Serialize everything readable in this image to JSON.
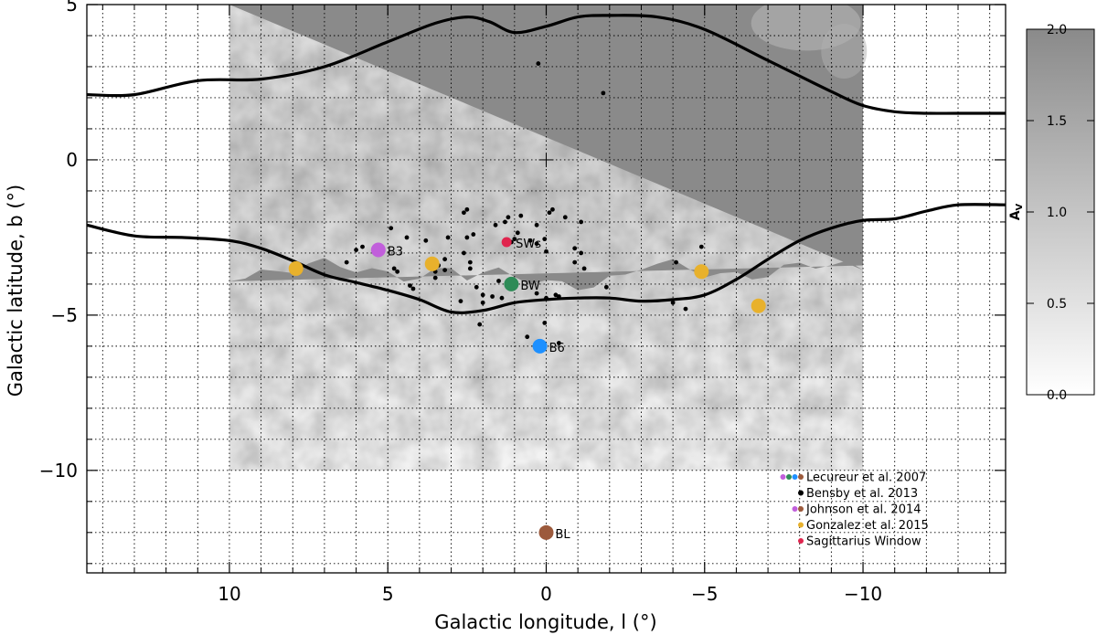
{
  "chart_data": {
    "type": "scatter",
    "title": "",
    "xlabel": "Galactic longitude, l (°)",
    "ylabel": "Galactic latitude, b (°)",
    "xlim": [
      14.5,
      -14.5
    ],
    "ylim": [
      -13.3,
      5.0
    ],
    "x_ticks": [
      10,
      5,
      0,
      -5,
      -10
    ],
    "x_tick_labels": [
      "10",
      "5",
      "0",
      "−5",
      "−10"
    ],
    "y_ticks": [
      5,
      0,
      -5,
      -10
    ],
    "y_tick_labels": [
      "5",
      "0",
      "−5",
      "−10"
    ],
    "grid": true,
    "extinction_map": {
      "l_range": [
        10,
        -10
      ],
      "b_range": [
        -10,
        5
      ],
      "dark_above_b": -4.0
    },
    "colorbar": {
      "label": "A_V",
      "ticks": [
        0.0,
        0.5,
        1.0,
        1.5,
        2.0
      ],
      "tick_labels": [
        "0.0",
        "0.5",
        "1.0",
        "1.5",
        "2.0"
      ],
      "range": [
        0.0,
        2.0
      ]
    },
    "contours": [
      {
        "name": "upper-contour",
        "l": [
          14.5,
          13,
          11,
          9,
          7,
          5,
          3.5,
          2.5,
          1.8,
          1,
          0,
          -1,
          -2,
          -3.5,
          -5,
          -7,
          -9,
          -10,
          -11,
          -12,
          -13,
          -14.5
        ],
        "b": [
          2.1,
          2.1,
          2.55,
          2.6,
          3.0,
          3.8,
          4.4,
          4.6,
          4.45,
          4.1,
          4.3,
          4.6,
          4.65,
          4.6,
          4.2,
          3.2,
          2.2,
          1.75,
          1.55,
          1.5,
          1.5,
          1.5
        ]
      },
      {
        "name": "lower-contour",
        "l": [
          14.5,
          13,
          11.5,
          10,
          9,
          8,
          7,
          6,
          5,
          4,
          3,
          2,
          1,
          0,
          -1,
          -2,
          -3,
          -4,
          -5,
          -6,
          -7,
          -8,
          -9,
          -10,
          -11,
          -12,
          -13,
          -14.5
        ],
        "b": [
          -2.1,
          -2.45,
          -2.5,
          -2.6,
          -2.85,
          -3.25,
          -3.7,
          -3.95,
          -4.2,
          -4.5,
          -4.9,
          -4.85,
          -4.6,
          -4.5,
          -4.45,
          -4.45,
          -4.55,
          -4.5,
          -4.35,
          -3.85,
          -3.2,
          -2.6,
          -2.2,
          -1.95,
          -1.9,
          -1.65,
          -1.45,
          -1.45
        ]
      }
    ],
    "series": [
      {
        "name": "Bensby et al. 2013",
        "color": "#000000",
        "marker": "small-dot",
        "points": [
          [
            0.25,
            3.1
          ],
          [
            -1.8,
            2.15
          ],
          [
            2.5,
            -1.6
          ],
          [
            2.6,
            -1.7
          ],
          [
            1.6,
            -2.1
          ],
          [
            1.3,
            -2.0
          ],
          [
            1.2,
            -1.85
          ],
          [
            0.8,
            -1.8
          ],
          [
            -0.2,
            -1.6
          ],
          [
            -0.1,
            -1.7
          ],
          [
            -0.6,
            -1.85
          ],
          [
            -1.1,
            -2.0
          ],
          [
            0.3,
            -2.1
          ],
          [
            0.9,
            -2.35
          ],
          [
            1.0,
            -2.55
          ],
          [
            2.3,
            -2.4
          ],
          [
            2.5,
            -2.5
          ],
          [
            4.9,
            -2.2
          ],
          [
            4.4,
            -2.5
          ],
          [
            3.8,
            -2.6
          ],
          [
            3.1,
            -2.5
          ],
          [
            1.1,
            -2.65
          ],
          [
            0.5,
            -2.6
          ],
          [
            0.05,
            -2.55
          ],
          [
            0.3,
            -2.7
          ],
          [
            0.0,
            -2.95
          ],
          [
            -0.9,
            -2.85
          ],
          [
            -1.1,
            -3.0
          ],
          [
            -0.9,
            -3.3
          ],
          [
            -1.2,
            -3.5
          ],
          [
            5.8,
            -2.8
          ],
          [
            6.0,
            -2.9
          ],
          [
            6.3,
            -3.3
          ],
          [
            4.7,
            -3.6
          ],
          [
            4.8,
            -3.5
          ],
          [
            3.2,
            -3.2
          ],
          [
            3.4,
            -3.4
          ],
          [
            3.5,
            -3.6
          ],
          [
            2.6,
            -3.0
          ],
          [
            2.4,
            -3.3
          ],
          [
            2.4,
            -3.5
          ],
          [
            3.2,
            -3.55
          ],
          [
            3.5,
            -3.8
          ],
          [
            4.3,
            -4.05
          ],
          [
            4.2,
            -4.15
          ],
          [
            1.5,
            -3.9
          ],
          [
            2.2,
            -4.1
          ],
          [
            2.0,
            -4.35
          ],
          [
            1.7,
            -4.4
          ],
          [
            1.4,
            -4.45
          ],
          [
            2.7,
            -4.55
          ],
          [
            2.0,
            -4.6
          ],
          [
            0.3,
            -4.3
          ],
          [
            -0.3,
            -4.35
          ],
          [
            0.0,
            -4.45
          ],
          [
            -0.4,
            -4.4
          ],
          [
            -1.9,
            -4.1
          ],
          [
            -4.9,
            -2.8
          ],
          [
            -4.1,
            -3.3
          ],
          [
            -4.0,
            -4.6
          ],
          [
            -4.4,
            -4.8
          ],
          [
            2.1,
            -5.3
          ],
          [
            0.05,
            -5.25
          ],
          [
            0.6,
            -5.7
          ],
          [
            -0.4,
            -5.9
          ]
        ]
      },
      {
        "name": "Gonzalez et al. 2015",
        "color": "#e8b12c",
        "marker": "large-dot",
        "points": [
          [
            7.9,
            -3.5
          ],
          [
            3.6,
            -3.35
          ],
          [
            -4.9,
            -3.6
          ],
          [
            -6.7,
            -4.7
          ]
        ]
      },
      {
        "name": "Lecureur et al. 2007",
        "color": "#c15fdb",
        "marker": "large-dot",
        "points": [
          [
            5.3,
            -2.9,
            "B3"
          ]
        ]
      },
      {
        "name": "Lecureur et al. 2007",
        "color": "#2e8b57",
        "marker": "large-dot",
        "points": [
          [
            1.1,
            -4.0,
            "BW"
          ]
        ]
      },
      {
        "name": "Lecureur et al. 2007",
        "color": "#1e90ff",
        "marker": "large-dot",
        "points": [
          [
            0.2,
            -6.0,
            "B6"
          ]
        ]
      },
      {
        "name": "Lecureur et al. 2007",
        "color": "#9c5a3c",
        "marker": "large-dot",
        "points": [
          [
            0.0,
            -12.0,
            "BL"
          ]
        ]
      },
      {
        "name": "Sagittarius Window",
        "color": "#e0254e",
        "marker": "medium-dot",
        "points": [
          [
            1.25,
            -2.65,
            "SWs"
          ]
        ]
      }
    ],
    "legend": {
      "location": "bottom-right",
      "entries": [
        {
          "label": "Lecureur et al. 2007",
          "colors": [
            "#c15fdb",
            "#2e8b57",
            "#1e90ff",
            "#9c5a3c"
          ]
        },
        {
          "label": "Bensby et al. 2013",
          "colors": [
            "#000000"
          ]
        },
        {
          "label": "Johnson et al. 2014",
          "colors": [
            "#c15fdb",
            "#9c5a3c"
          ]
        },
        {
          "label": "Gonzalez et al. 2015",
          "colors": [
            "#e8b12c"
          ]
        },
        {
          "label": "Sagittarius Window",
          "colors": [
            "#e0254e"
          ]
        }
      ]
    }
  }
}
